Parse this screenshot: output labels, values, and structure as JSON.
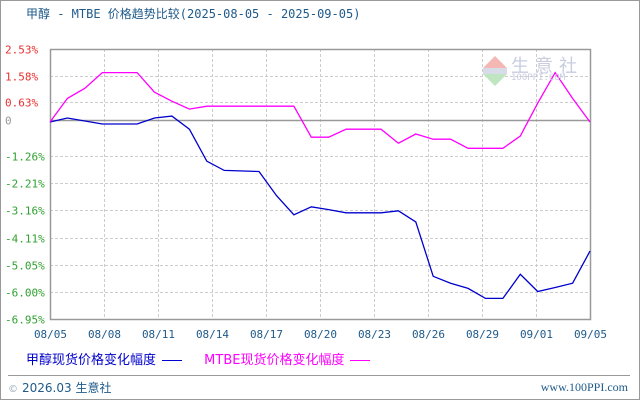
{
  "title": "甲醇 - MTBE 价格趋势比较(2025-08-05 - 2025-09-05)",
  "legend": {
    "series1_label": "甲醇现货价格变化幅度",
    "series2_label": "MTBE现货价格变化幅度"
  },
  "footer": {
    "copyright_symbol": "©",
    "left_text": "2026.03 生意社",
    "right_text": "www.100PPI.com"
  },
  "watermark": {
    "text": "生意社",
    "sub": "100PPI.COM"
  },
  "colors": {
    "methanol_line": "#0000cc",
    "mtbe_line": "#ff00ff",
    "positive_tick": "#e83030",
    "zero_tick": "#999999",
    "negative_tick": "#30a030",
    "grid": "#cccccc",
    "axis": "#999999",
    "text_blue": "#1e5a8a"
  },
  "chart_data": {
    "type": "line",
    "title": "甲醇 - MTBE 价格趋势比较(2025-08-05 - 2025-09-05)",
    "xlabel": "",
    "ylabel": "",
    "ylim": [
      -6.95,
      2.53
    ],
    "y_ticks": [
      "2.53%",
      "1.58%",
      "0.63%",
      "0",
      "-1.26%",
      "-2.21%",
      "-3.16%",
      "-4.11%",
      "-5.05%",
      "-6.00%",
      "-6.95%"
    ],
    "y_tick_values": [
      2.53,
      1.58,
      0.63,
      0,
      -1.26,
      -2.21,
      -3.16,
      -4.11,
      -5.05,
      -6.0,
      -6.95
    ],
    "x_ticks": [
      "08/05",
      "08/08",
      "08/11",
      "08/14",
      "08/17",
      "08/20",
      "08/23",
      "08/26",
      "08/29",
      "09/01",
      "09/05"
    ],
    "grid": true,
    "legend_position": "bottom",
    "x_index_range": [
      0,
      31
    ],
    "series": [
      {
        "name": "甲醇现货价格变化幅度",
        "color": "#0000cc",
        "x": [
          0,
          1,
          3,
          5,
          6,
          7,
          8,
          9,
          10,
          12,
          13,
          14,
          15,
          16,
          17,
          18,
          19,
          20,
          21,
          22,
          23,
          24,
          25,
          26,
          27,
          28,
          29,
          30,
          31
        ],
        "values": [
          -0.07,
          0.07,
          -0.14,
          -0.14,
          0.07,
          0.14,
          -0.32,
          -1.44,
          -1.76,
          -1.8,
          -2.64,
          -3.31,
          -3.03,
          -3.13,
          -3.24,
          -3.24,
          -3.24,
          -3.17,
          -3.56,
          -5.46,
          -5.7,
          -5.88,
          -6.23,
          -6.23,
          -5.39,
          -5.99,
          -5.85,
          -5.7,
          -4.58
        ]
      },
      {
        "name": "MTBE现货价格变化幅度",
        "color": "#ff00ff",
        "x": [
          0,
          1,
          2,
          3,
          5,
          6,
          7,
          8,
          9,
          10,
          14,
          15,
          16,
          17,
          19,
          20,
          21,
          22,
          23,
          24,
          26,
          27,
          28,
          29,
          30,
          31
        ],
        "values": [
          -0.07,
          0.77,
          1.13,
          1.69,
          1.69,
          0.99,
          0.67,
          0.39,
          0.49,
          0.49,
          0.49,
          -0.6,
          -0.6,
          -0.32,
          -0.32,
          -0.81,
          -0.49,
          -0.67,
          -0.67,
          -0.99,
          -0.99,
          -0.56,
          0.6,
          1.69,
          0.77,
          -0.07
        ]
      }
    ]
  }
}
